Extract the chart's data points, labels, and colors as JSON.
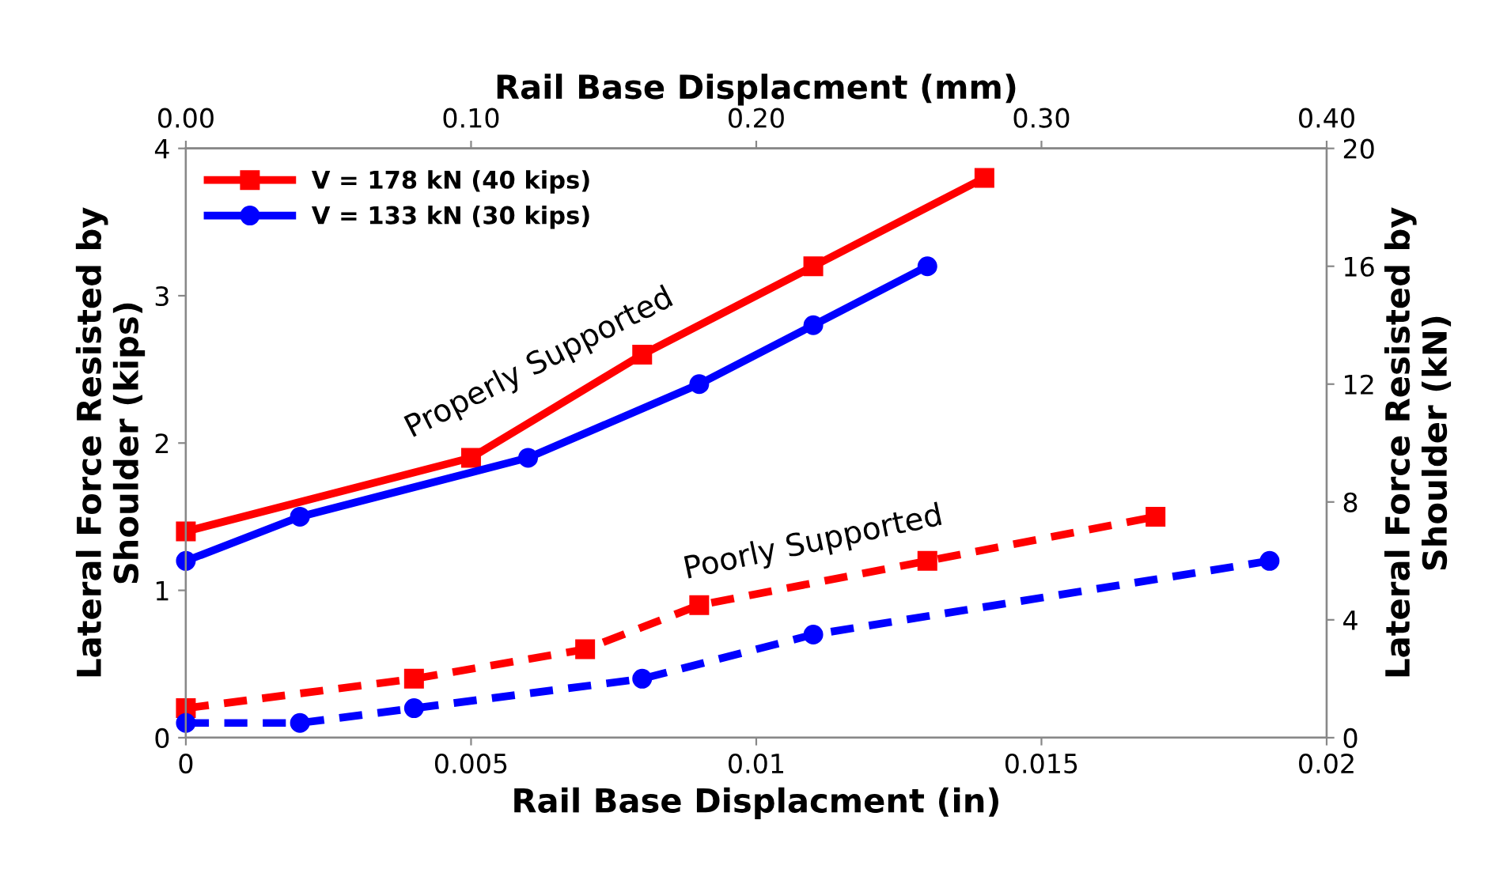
{
  "chart_data": {
    "type": "line",
    "xlabel": "Rail Base Displacment (in)",
    "ylabel": "Lateral Force Resisted by\nShoulder (kips)",
    "x2label": "Rail Base Displacment (mm)",
    "y2label": "Lateral Force Resisted by\nShoulder (kN)",
    "xlim": [
      0,
      0.02
    ],
    "xticks": [
      0,
      0.005,
      0.01,
      0.015,
      0.02
    ],
    "ylim": [
      0,
      4
    ],
    "yticks": [
      0,
      1,
      2,
      3,
      4
    ],
    "x2lim": [
      0,
      0.4
    ],
    "x2ticks": [
      {
        "value": 0,
        "label": "0.00"
      },
      {
        "value": 0.1,
        "label": "0.10"
      },
      {
        "value": 0.2,
        "label": "0.20"
      },
      {
        "value": 0.3,
        "label": "0.30"
      },
      {
        "value": 0.4,
        "label": "0.40"
      }
    ],
    "y2lim": [
      0,
      20
    ],
    "y2ticks": [
      0,
      4,
      8,
      12,
      16,
      20
    ],
    "grid": false,
    "legend": "top left",
    "series": [
      {
        "name": "V = 178 kN (40 kips)",
        "color": "#ff0000",
        "marker": "square",
        "line_style": "solid",
        "x": [
          0,
          0.005,
          0.008,
          0.011,
          0.014
        ],
        "values": [
          1.4,
          1.9,
          2.6,
          3.2,
          3.8
        ]
      },
      {
        "name": "V = 133 kN (30 kips)",
        "color": "#0000ff",
        "marker": "circle",
        "line_style": "solid",
        "x": [
          0,
          0.002,
          0.006,
          0.009,
          0.011,
          0.013
        ],
        "values": [
          1.2,
          1.5,
          1.9,
          2.4,
          2.8,
          3.2
        ]
      },
      {
        "color": "#ff0000",
        "marker": "square",
        "line_style": "dashed",
        "x": [
          0,
          0.004,
          0.007,
          0.009,
          0.013,
          0.017
        ],
        "values": [
          0.2,
          0.4,
          0.6,
          0.9,
          1.2,
          1.5
        ]
      },
      {
        "color": "#0000ff",
        "marker": "circle",
        "line_style": "dashed",
        "x": [
          0,
          0.002,
          0.004,
          0.008,
          0.011,
          0.019
        ],
        "values": [
          0.1,
          0.1,
          0.2,
          0.4,
          0.7,
          1.2
        ]
      }
    ],
    "annotations": [
      "Properly Supported",
      "Poorly Supported"
    ]
  }
}
